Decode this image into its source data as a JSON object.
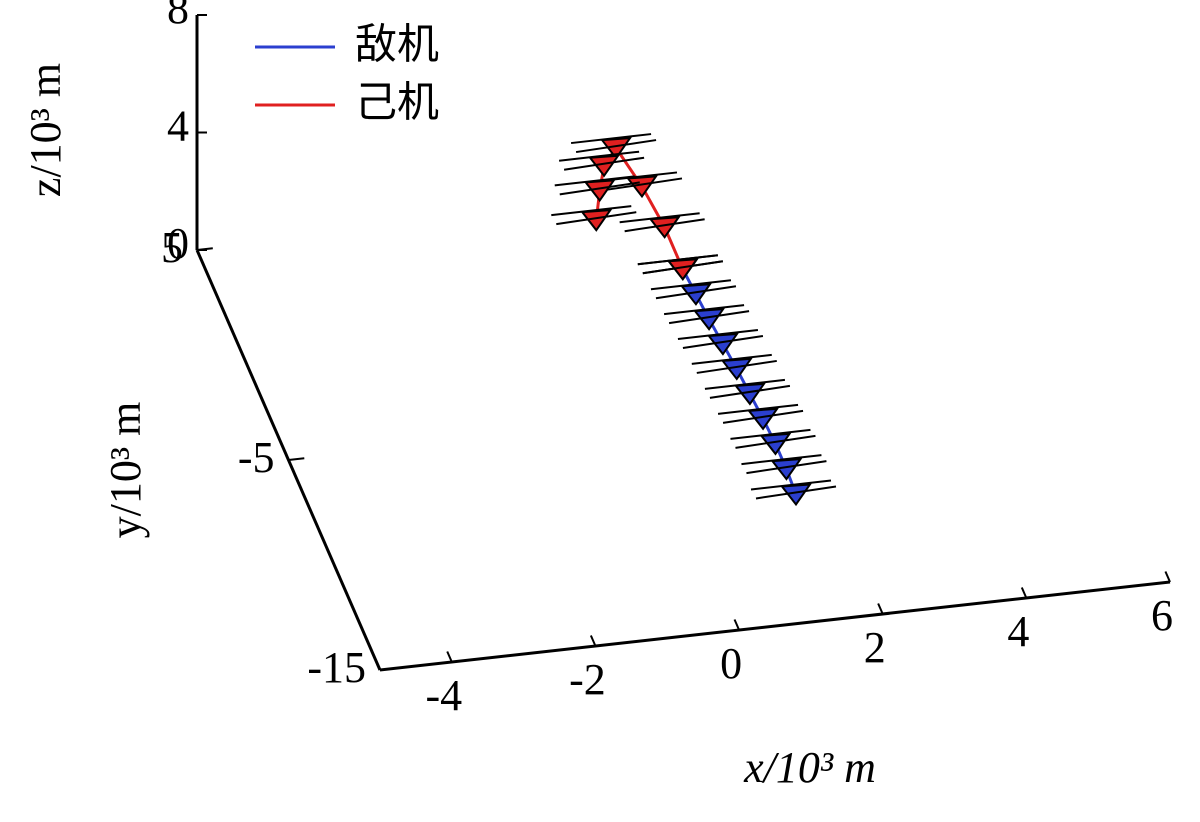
{
  "chart_data": {
    "type": "line3d",
    "xlabel": "x/10³ m",
    "ylabel": "y/10³ m",
    "zlabel": "z/10³ m",
    "xlim": [
      -5,
      6
    ],
    "ylim": [
      -15,
      5
    ],
    "zlim": [
      0,
      8
    ],
    "xticks": [
      -4,
      -2,
      0,
      2,
      4,
      6
    ],
    "yticks": [
      -15,
      -5,
      5
    ],
    "zticks": [
      0,
      4,
      8
    ],
    "legend": "upper left",
    "series": [
      {
        "name": "敌机",
        "color": "#2b3fcf",
        "x": [
          1.2,
          1.22,
          1.22,
          1.2,
          1.17,
          1.14,
          1.1,
          1.06,
          1.03,
          1.0
        ],
        "y": [
          -11.8,
          -10.6,
          -9.4,
          -8.2,
          -7.0,
          -5.8,
          -4.6,
          -3.4,
          -2.2,
          -1.0
        ],
        "z": [
          2,
          2,
          2,
          2,
          2,
          2,
          2,
          2,
          2,
          2
        ]
      },
      {
        "name": "己机",
        "color": "#e02020",
        "x": [
          1.0,
          0.9,
          0.75,
          0.56,
          0.35,
          0.2,
          0.05
        ],
        "y": [
          -1.0,
          0.2,
          1.5,
          2.84,
          2.5,
          1.8,
          1.0
        ],
        "z": [
          2.0,
          2.6,
          3.1,
          3.5,
          3.2,
          2.9,
          2.5
        ]
      }
    ]
  }
}
